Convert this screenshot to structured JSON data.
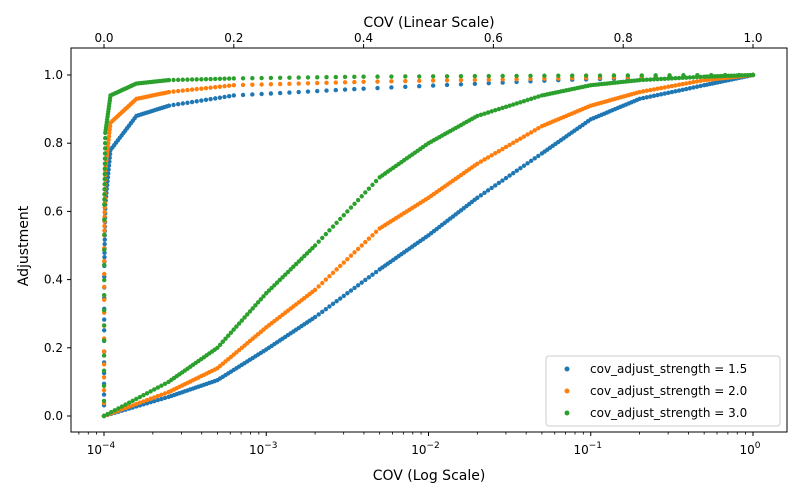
{
  "chart_data": {
    "type": "scatter",
    "title": "",
    "xlabel_bottom": "COV (Log Scale)",
    "xlabel_top": "COV (Linear Scale)",
    "ylabel": "Adjustment",
    "x_bottom_scale": "log",
    "x_bottom_range": [
      0.0001,
      1.0
    ],
    "x_bottom_ticks": [
      {
        "value": 0.0001,
        "base": "10",
        "exp": "−4"
      },
      {
        "value": 0.001,
        "base": "10",
        "exp": "−3"
      },
      {
        "value": 0.01,
        "base": "10",
        "exp": "−2"
      },
      {
        "value": 0.1,
        "base": "10",
        "exp": "−1"
      },
      {
        "value": 1,
        "base": "10",
        "exp": "0"
      }
    ],
    "x_top_scale": "linear",
    "x_top_range": [
      0.0,
      1.0
    ],
    "x_top_ticks": [
      "0.0",
      "0.2",
      "0.4",
      "0.6",
      "0.8",
      "1.0"
    ],
    "y_range": [
      0.0,
      1.0
    ],
    "y_ticks": [
      "0.0",
      "0.2",
      "0.4",
      "0.6",
      "0.8",
      "1.0"
    ],
    "grid": false,
    "legend_position": "bottom-right",
    "series": [
      {
        "name": "cov_adjust_strength = 1.5",
        "strength": 1.5,
        "color": "#1f77b4",
        "points_log_axis": [
          [
            0.0001,
            0.0
          ],
          [
            0.00025,
            0.056
          ],
          [
            0.0005,
            0.105
          ],
          [
            0.001,
            0.195
          ],
          [
            0.002,
            0.29
          ],
          [
            0.005,
            0.43
          ],
          [
            0.01,
            0.53
          ],
          [
            0.02,
            0.64
          ],
          [
            0.05,
            0.77
          ],
          [
            0.1,
            0.87
          ],
          [
            0.2,
            0.93
          ],
          [
            0.5,
            0.97
          ],
          [
            1.0,
            1.0
          ]
        ],
        "points_linear_axis": [
          [
            0.0,
            0.0
          ],
          [
            0.0005,
            0.44
          ],
          [
            0.002,
            0.62
          ],
          [
            0.01,
            0.78
          ],
          [
            0.05,
            0.88
          ],
          [
            0.1,
            0.91
          ],
          [
            0.2,
            0.94
          ],
          [
            0.4,
            0.96
          ],
          [
            0.7,
            0.985
          ],
          [
            1.0,
            1.0
          ]
        ]
      },
      {
        "name": "cov_adjust_strength = 2.0",
        "strength": 2.0,
        "color": "#ff7f0e",
        "points_log_axis": [
          [
            0.0001,
            0.0
          ],
          [
            0.00025,
            0.07
          ],
          [
            0.0005,
            0.14
          ],
          [
            0.001,
            0.26
          ],
          [
            0.002,
            0.37
          ],
          [
            0.005,
            0.55
          ],
          [
            0.01,
            0.64
          ],
          [
            0.02,
            0.74
          ],
          [
            0.05,
            0.85
          ],
          [
            0.1,
            0.91
          ],
          [
            0.2,
            0.95
          ],
          [
            0.5,
            0.985
          ],
          [
            1.0,
            1.0
          ]
        ],
        "points_linear_axis": [
          [
            0.0,
            0.0
          ],
          [
            0.0005,
            0.53
          ],
          [
            0.002,
            0.72
          ],
          [
            0.01,
            0.86
          ],
          [
            0.05,
            0.93
          ],
          [
            0.1,
            0.95
          ],
          [
            0.2,
            0.97
          ],
          [
            0.4,
            0.98
          ],
          [
            0.7,
            0.99
          ],
          [
            1.0,
            1.0
          ]
        ]
      },
      {
        "name": "cov_adjust_strength = 3.0",
        "strength": 3.0,
        "color": "#2ca02c",
        "points_log_axis": [
          [
            0.0001,
            0.0
          ],
          [
            0.00025,
            0.1
          ],
          [
            0.0005,
            0.2
          ],
          [
            0.001,
            0.36
          ],
          [
            0.002,
            0.5
          ],
          [
            0.005,
            0.7
          ],
          [
            0.01,
            0.8
          ],
          [
            0.02,
            0.88
          ],
          [
            0.05,
            0.94
          ],
          [
            0.1,
            0.97
          ],
          [
            0.2,
            0.985
          ],
          [
            0.5,
            0.995
          ],
          [
            1.0,
            1.0
          ]
        ],
        "points_linear_axis": [
          [
            0.0,
            0.0
          ],
          [
            0.0005,
            0.62
          ],
          [
            0.002,
            0.83
          ],
          [
            0.01,
            0.94
          ],
          [
            0.05,
            0.975
          ],
          [
            0.1,
            0.985
          ],
          [
            0.2,
            0.99
          ],
          [
            0.4,
            0.995
          ],
          [
            0.7,
            0.998
          ],
          [
            1.0,
            1.0
          ]
        ]
      }
    ]
  }
}
